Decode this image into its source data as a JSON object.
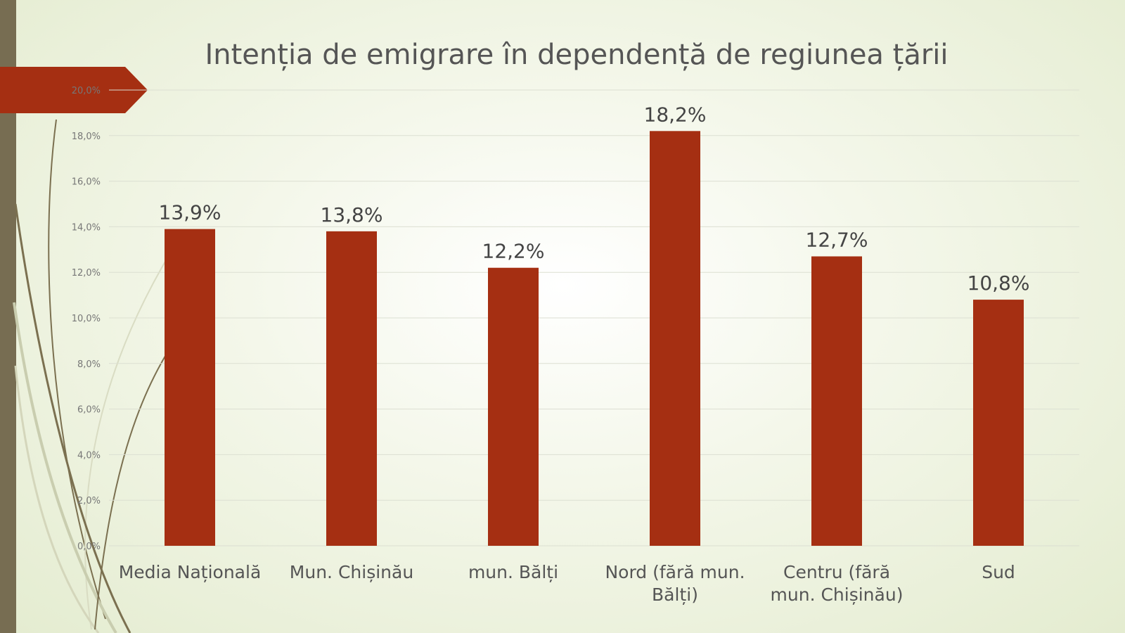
{
  "chart_data": {
    "type": "bar",
    "title": "Intenția de emigrare în dependență de regiunea țării",
    "categories": [
      [
        "Media Națională"
      ],
      [
        "Mun. Chișinău"
      ],
      [
        "mun. Bălți"
      ],
      [
        "Nord (fără mun.",
        "Bălți)"
      ],
      [
        "Centru (fără",
        "mun. Chișinău)"
      ],
      [
        "Sud"
      ]
    ],
    "values": [
      13.9,
      13.8,
      12.2,
      18.2,
      12.7,
      10.8
    ],
    "value_labels": [
      "13,9%",
      "13,8%",
      "12,2%",
      "18,2%",
      "12,7%",
      "10,8%"
    ],
    "ylim": [
      0,
      20
    ],
    "yticks": [
      "0,0%",
      "2,0%",
      "4,0%",
      "6,0%",
      "8,0%",
      "10,0%",
      "12,0%",
      "14,0%",
      "16,0%",
      "18,0%",
      "20,0%"
    ],
    "xlabel": "",
    "ylabel": "",
    "grid": true,
    "bar_color": "#a52f12",
    "accent_color": "#a52f12",
    "strip_color": "#776d52"
  }
}
